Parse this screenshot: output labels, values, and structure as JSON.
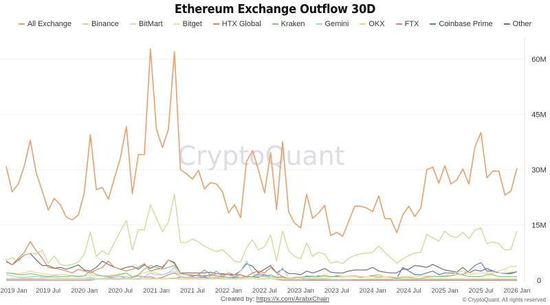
{
  "chart_data": {
    "type": "line",
    "title": "Ethereum Exchange Outflow 30D",
    "xlabel": "",
    "ylabel": "",
    "y_axis_position": "right",
    "ylim": [
      0,
      65000000
    ],
    "y_ticks": [
      "0",
      "15M",
      "30M",
      "45M",
      "60M"
    ],
    "y_tick_values": [
      0,
      15,
      30,
      45,
      60
    ],
    "y_unit": "M",
    "x_tick_labels": [
      "2019 Jan",
      "2019 Jul",
      "2020 Jan",
      "2020 Jul",
      "2021 Jan",
      "2021 Jul",
      "2022 Jan",
      "2022 Jul",
      "2023 Jan",
      "2023 Jul",
      "2024 Jan",
      "2024 Jul",
      "2025 Jan",
      "2025 Jul",
      "2026 Jan"
    ],
    "x_tick_dates": [
      "2019-01",
      "2019-07",
      "2020-01",
      "2020-07",
      "2021-01",
      "2021-07",
      "2022-01",
      "2022-07",
      "2023-01",
      "2023-07",
      "2024-01",
      "2024-07",
      "2025-01",
      "2025-07",
      "2026-01"
    ],
    "grid": true,
    "legend_position": "top",
    "watermark": "CryptoQuant",
    "x": [
      "2018-12",
      "2019-01",
      "2019-02",
      "2019-03",
      "2019-04",
      "2019-05",
      "2019-06",
      "2019-07",
      "2019-08",
      "2019-09",
      "2019-10",
      "2019-11",
      "2019-12",
      "2020-01",
      "2020-02",
      "2020-03",
      "2020-04",
      "2020-05",
      "2020-06",
      "2020-07",
      "2020-08",
      "2020-09",
      "2020-10",
      "2020-11",
      "2020-12",
      "2021-01",
      "2021-02",
      "2021-03",
      "2021-04",
      "2021-05",
      "2021-06",
      "2021-07",
      "2021-08",
      "2021-09",
      "2021-10",
      "2021-11",
      "2021-12",
      "2022-01",
      "2022-02",
      "2022-03",
      "2022-04",
      "2022-05",
      "2022-06",
      "2022-07",
      "2022-08",
      "2022-09",
      "2022-10",
      "2022-11",
      "2022-12",
      "2023-01",
      "2023-02",
      "2023-03",
      "2023-04",
      "2023-05",
      "2023-06",
      "2023-07",
      "2023-08",
      "2023-09",
      "2023-10",
      "2023-11",
      "2023-12",
      "2024-01",
      "2024-02",
      "2024-03",
      "2024-04",
      "2024-05",
      "2024-06",
      "2024-07",
      "2024-08",
      "2024-09",
      "2024-10",
      "2024-11",
      "2024-12",
      "2025-01",
      "2025-02",
      "2025-03",
      "2025-04",
      "2025-05",
      "2025-06",
      "2025-07",
      "2025-08",
      "2025-09",
      "2025-10",
      "2025-11",
      "2025-12",
      "2026-01"
    ],
    "series": [
      {
        "name": "All Exchange",
        "color": "#e8a06a",
        "values": [
          30.9,
          24.0,
          26.1,
          30.9,
          38.0,
          29.1,
          24.2,
          19.0,
          22.2,
          20.5,
          17.1,
          16.4,
          17.7,
          23.8,
          39.5,
          24.6,
          25.2,
          22.0,
          27.6,
          33.2,
          41.7,
          23.5,
          34.1,
          34.1,
          62.8,
          41.0,
          36.0,
          41.0,
          62.0,
          30.0,
          28.9,
          27.4,
          29.8,
          24.8,
          26.5,
          26.1,
          24.0,
          18.3,
          20.5,
          17.0,
          32.2,
          35.2,
          29.8,
          23.7,
          34.7,
          19.2,
          37.6,
          18.6,
          15.5,
          14.2,
          23.3,
          16.8,
          18.3,
          20.3,
          12.1,
          13.0,
          11.9,
          16.0,
          20.1,
          20.1,
          19.6,
          18.6,
          22.9,
          16.8,
          16.6,
          12.9,
          17.7,
          20.1,
          17.3,
          19.6,
          30.0,
          30.7,
          26.3,
          31.1,
          26.1,
          27.2,
          30.2,
          26.1,
          36.1,
          40.1,
          27.8,
          29.6,
          29.6,
          23.1,
          24.2,
          30.4
        ]
      },
      {
        "name": "Binance",
        "color": "#c8d888",
        "values": [
          5.4,
          6.1,
          5.2,
          6.7,
          7.4,
          7.1,
          8.2,
          4.6,
          6.6,
          4.3,
          4.0,
          4.3,
          4.9,
          7.0,
          13.0,
          6.4,
          8.0,
          7.0,
          10.2,
          13.3,
          16.2,
          8.2,
          13.8,
          13.6,
          20.5,
          16.8,
          13.2,
          15.8,
          23.3,
          10.3,
          10.2,
          11.2,
          10.4,
          9.3,
          8.4,
          7.8,
          8.3,
          6.8,
          5.2,
          4.9,
          8.9,
          11.0,
          8.2,
          9.1,
          12.3,
          5.2,
          13.4,
          8.0,
          6.5,
          5.8,
          10.1,
          6.5,
          7.6,
          7.1,
          4.6,
          5.1,
          4.5,
          6.0,
          6.7,
          7.2,
          7.4,
          7.6,
          9.3,
          7.6,
          6.1,
          4.6,
          5.8,
          6.7,
          7.4,
          7.6,
          12.5,
          11.5,
          10.6,
          13.3,
          11.9,
          11.6,
          13.0,
          11.3,
          13.6,
          14.2,
          9.9,
          10.4,
          9.9,
          8.2,
          8.4,
          13.4
        ]
      },
      {
        "name": "BitMart",
        "color": "#d9e2a6",
        "values": [
          0.5,
          0.5,
          0.5,
          0.6,
          0.6,
          0.5,
          0.5,
          0.4,
          0.4,
          0.4,
          0.4,
          0.4,
          0.4,
          0.4,
          0.5,
          0.4,
          0.4,
          0.4,
          0.5,
          0.5,
          0.6,
          0.4,
          0.5,
          0.5,
          0.6,
          0.5,
          0.5,
          0.6,
          0.7,
          0.4,
          0.4,
          0.4,
          0.4,
          0.4,
          0.4,
          0.4,
          0.3,
          0.3,
          0.3,
          0.3,
          0.4,
          0.4,
          0.3,
          0.3,
          0.4,
          0.3,
          0.3,
          0.2,
          0.2,
          0.2,
          0.3,
          0.3,
          0.3,
          0.3,
          0.2,
          0.2,
          0.2,
          0.2,
          0.3,
          0.3,
          0.3,
          0.3,
          0.3,
          0.3,
          0.3,
          0.2,
          0.3,
          0.3,
          0.3,
          0.3,
          0.3,
          0.3,
          0.3,
          0.3,
          0.3,
          0.3,
          0.3,
          0.3,
          0.3,
          0.3,
          0.3,
          0.3,
          0.3,
          0.3,
          0.3,
          0.3
        ]
      },
      {
        "name": "Bitget",
        "color": "#f0e2a2",
        "values": [
          0.2,
          0.2,
          0.2,
          0.2,
          0.2,
          0.2,
          0.2,
          0.2,
          0.2,
          0.2,
          0.2,
          0.2,
          0.2,
          0.2,
          0.2,
          0.2,
          0.2,
          0.2,
          0.2,
          0.2,
          0.3,
          0.2,
          0.2,
          0.3,
          0.3,
          0.3,
          0.3,
          0.4,
          0.4,
          0.3,
          0.3,
          0.3,
          0.3,
          0.3,
          0.3,
          0.4,
          0.4,
          0.4,
          0.4,
          0.5,
          0.5,
          0.5,
          0.5,
          0.5,
          0.6,
          0.5,
          0.5,
          0.5,
          0.6,
          0.6,
          0.8,
          0.8,
          0.8,
          1.0,
          0.8,
          0.8,
          0.8,
          1.0,
          1.0,
          1.0,
          1.0,
          1.0,
          1.2,
          1.0,
          1.0,
          0.8,
          1.0,
          1.0,
          1.0,
          1.2,
          1.2,
          1.2,
          1.2,
          1.5,
          1.5,
          1.5,
          1.8,
          1.5,
          1.8,
          2.0,
          1.8,
          1.8,
          2.0,
          2.0,
          2.2,
          2.5
        ]
      },
      {
        "name": "HTX Global",
        "color": "#d98a58",
        "values": [
          5.0,
          4.2,
          6.0,
          7.5,
          10.5,
          8.0,
          6.0,
          3.5,
          3.2,
          3.0,
          2.5,
          2.0,
          3.0,
          2.5,
          2.0,
          2.8,
          3.5,
          5.2,
          3.5,
          3.0,
          2.5,
          3.0,
          3.5,
          4.5,
          2.5,
          3.0,
          3.2,
          5.5,
          4.5,
          1.8,
          1.5,
          1.2,
          1.5,
          2.8,
          1.5,
          1.2,
          1.0,
          2.0,
          1.5,
          1.5,
          1.0,
          2.0,
          2.5,
          2.0,
          3.5,
          2.0,
          1.0,
          0.3,
          0.2,
          0.1,
          0.1,
          0.1,
          0.1,
          0.1,
          0.1,
          0.1,
          0.1,
          0.1,
          0.1,
          0.1,
          0.1,
          0.1,
          0.1,
          0.1,
          0.1,
          0.1,
          0.1,
          0.1,
          0.1,
          0.1,
          0.1,
          0.1,
          0.1,
          0.1,
          0.1,
          0.1,
          0.1,
          0.1,
          0.1,
          0.1,
          0.1,
          0.1,
          0.1,
          0.1,
          0.1,
          0.1
        ]
      },
      {
        "name": "Kraken",
        "color": "#8cc08c",
        "values": [
          2.0,
          1.8,
          1.5,
          1.5,
          1.8,
          1.5,
          1.2,
          1.0,
          1.2,
          1.0,
          1.0,
          1.2,
          1.0,
          1.2,
          2.5,
          1.5,
          1.2,
          1.0,
          1.2,
          1.5,
          2.0,
          0.8,
          1.5,
          3.0,
          4.0,
          3.5,
          3.0,
          3.5,
          4.0,
          2.0,
          1.5,
          1.5,
          1.2,
          1.2,
          1.5,
          2.5,
          1.0,
          0.8,
          0.5,
          0.5,
          1.0,
          1.0,
          1.5,
          1.0,
          1.5,
          0.8,
          1.0,
          0.5,
          0.8,
          0.8,
          1.2,
          1.0,
          1.0,
          1.2,
          1.0,
          1.0,
          0.8,
          1.0,
          1.2,
          1.0,
          1.0,
          1.0,
          0.8,
          1.0,
          0.8,
          0.5,
          0.8,
          0.8,
          0.5,
          0.5,
          0.8,
          1.0,
          1.0,
          1.0,
          1.2,
          1.5,
          1.5,
          1.0,
          1.0,
          1.0,
          1.5,
          1.5,
          1.0,
          1.0,
          1.0,
          1.0
        ]
      },
      {
        "name": "Gemini",
        "color": "#9fd2e2",
        "values": [
          1.5,
          1.2,
          0.8,
          0.8,
          1.0,
          1.0,
          0.8,
          0.8,
          0.8,
          0.5,
          0.5,
          0.5,
          0.5,
          0.5,
          0.8,
          0.5,
          0.5,
          0.8,
          0.8,
          1.0,
          1.0,
          0.5,
          0.5,
          1.0,
          2.0,
          1.5,
          1.5,
          2.0,
          3.5,
          1.0,
          0.8,
          0.8,
          0.8,
          1.5,
          0.8,
          0.8,
          0.8,
          0.8,
          1.0,
          2.5,
          5.2,
          2.0,
          1.0,
          1.0,
          1.0,
          0.8,
          3.5,
          0.5,
          0.3,
          0.3,
          0.5,
          0.5,
          0.5,
          0.5,
          0.3,
          0.3,
          0.3,
          0.3,
          0.3,
          0.3,
          0.4,
          0.4,
          0.4,
          0.4,
          0.4,
          0.4,
          0.4,
          0.4,
          0.4,
          0.4,
          0.4,
          0.4,
          0.4,
          0.4,
          0.4,
          0.4,
          0.4,
          0.4,
          0.4,
          0.4,
          0.4,
          0.4,
          0.4,
          0.4,
          0.4,
          0.4
        ]
      },
      {
        "name": "OKX",
        "color": "#f0d878",
        "values": [
          2.0,
          2.0,
          1.8,
          2.0,
          2.5,
          2.0,
          1.8,
          1.5,
          1.5,
          1.5,
          1.5,
          1.2,
          1.2,
          1.2,
          1.5,
          1.2,
          1.2,
          1.2,
          1.5,
          1.8,
          2.0,
          1.0,
          1.5,
          2.0,
          2.5,
          2.0,
          1.5,
          2.0,
          2.5,
          0.8,
          0.5,
          0.5,
          0.5,
          0.5,
          0.5,
          0.8,
          0.5,
          0.5,
          0.5,
          0.8,
          1.0,
          0.8,
          0.5,
          0.5,
          1.0,
          0.5,
          0.8,
          0.5,
          0.8,
          0.8,
          1.2,
          1.2,
          1.0,
          1.5,
          1.0,
          1.0,
          1.0,
          1.2,
          1.0,
          1.0,
          1.0,
          1.0,
          1.5,
          1.0,
          0.8,
          0.8,
          1.0,
          1.0,
          1.0,
          1.2,
          1.0,
          1.0,
          1.2,
          1.2,
          1.5,
          2.0,
          2.5,
          2.0,
          1.8,
          2.0,
          2.0,
          2.0,
          2.5,
          3.0,
          3.8,
          3.8
        ]
      },
      {
        "name": "FTX",
        "color": "#d880a0",
        "values": [
          0,
          0,
          0,
          0,
          0,
          0,
          0,
          0,
          0,
          0,
          0,
          0,
          0,
          0,
          0,
          0.2,
          0.3,
          0.5,
          0.8,
          1.0,
          0.5,
          0.8,
          1.2,
          0.8,
          1.0,
          0.5,
          0.8,
          1.5,
          2.0,
          1.0,
          0.8,
          1.0,
          1.5,
          1.0,
          1.2,
          1.8,
          1.5,
          1.5,
          1.0,
          1.5,
          0.8,
          1.0,
          1.8,
          1.5,
          0.5,
          0.2,
          0,
          0,
          0,
          0,
          0,
          0,
          0,
          0,
          0,
          0,
          0,
          0,
          0,
          0,
          0,
          0,
          0,
          0,
          0,
          0,
          0,
          0,
          0,
          0,
          0,
          0,
          0,
          0,
          0,
          0,
          0,
          0,
          0,
          0,
          0,
          0,
          0,
          0,
          0,
          0
        ]
      },
      {
        "name": "Coinbase Prime",
        "color": "#5a7cc8",
        "values": [
          0.3,
          0.3,
          0.3,
          0.3,
          0.3,
          0.3,
          0.3,
          0.3,
          0.3,
          0.3,
          0.3,
          0.3,
          0.3,
          0.3,
          0.3,
          0.3,
          0.3,
          0.3,
          0.3,
          0.3,
          0.3,
          0.3,
          0.3,
          0.3,
          0.3,
          0.5,
          0.5,
          0.5,
          0.5,
          0.8,
          0.8,
          0.8,
          0.8,
          0.8,
          0.5,
          0.5,
          0.5,
          0.5,
          0.8,
          0.8,
          1.0,
          1.0,
          0.8,
          1.5,
          1.0,
          0.8,
          0.5,
          0.3,
          0.3,
          0.2,
          1.0,
          1.0,
          1.2,
          1.0,
          0.8,
          1.2,
          1.0,
          1.0,
          1.0,
          0.8,
          1.0,
          1.2,
          1.5,
          1.0,
          1.0,
          0.5,
          3.5,
          2.5,
          1.5,
          1.5,
          2.0,
          2.5,
          1.5,
          2.0,
          2.0,
          1.8,
          1.5,
          2.5,
          4.0,
          4.8,
          2.5,
          2.5,
          2.0,
          1.8,
          1.8,
          2.3
        ]
      },
      {
        "name": "Other",
        "color": "#6e6e78",
        "values": [
          5.2,
          4.2,
          5.5,
          6.8,
          7.3,
          5.5,
          4.0,
          4.0,
          3.3,
          3.5,
          3.0,
          3.5,
          4.2,
          2.8,
          2.5,
          3.5,
          5.2,
          4.3,
          3.5,
          3.0,
          3.5,
          3.8,
          3.0,
          4.2,
          3.2,
          4.0,
          3.5,
          5.5,
          4.8,
          2.0,
          2.0,
          2.0,
          2.0,
          2.0,
          2.2,
          1.8,
          1.8,
          1.5,
          1.5,
          2.5,
          4.5,
          3.8,
          2.0,
          3.0,
          4.0,
          2.0,
          3.0,
          1.8,
          1.8,
          1.5,
          2.5,
          2.0,
          2.5,
          3.2,
          2.2,
          2.0,
          2.0,
          2.5,
          2.8,
          2.8,
          2.8,
          3.5,
          2.5,
          2.2,
          2.0,
          2.0,
          3.0,
          3.0,
          4.0,
          3.8,
          3.5,
          4.3,
          3.5,
          2.8,
          2.5,
          2.2,
          3.5,
          2.0,
          2.8,
          2.5,
          3.2,
          2.5,
          2.0,
          2.0,
          2.0,
          2.5
        ]
      }
    ]
  },
  "footer": {
    "created_by_label": "Created by: ",
    "created_by_link": "https://x.com/ArabxChain",
    "copyright": "© CryptoQuant. All rights reserved"
  }
}
